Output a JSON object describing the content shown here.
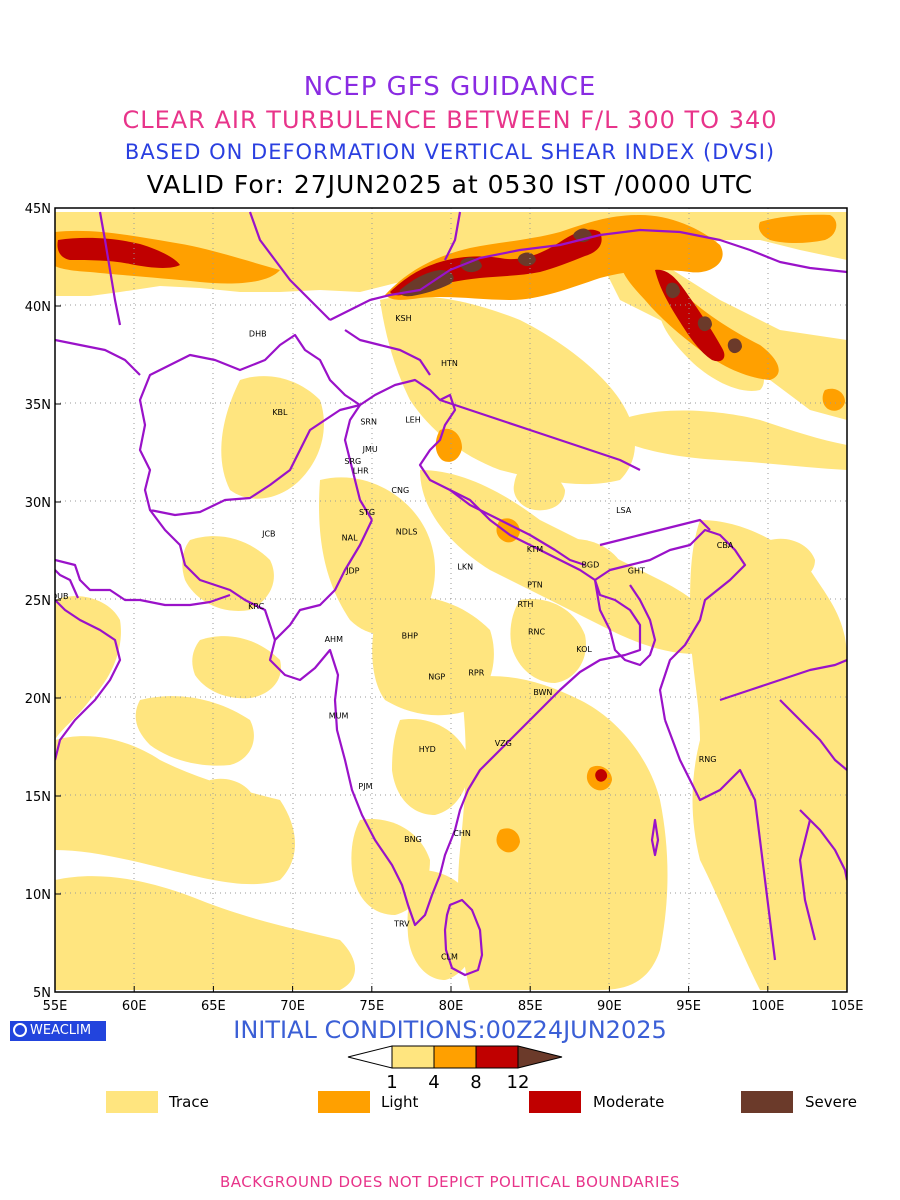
{
  "header": {
    "line1": "NCEP GFS GUIDANCE",
    "line2": "CLEAR AIR TURBULENCE BETWEEN F/L 300 TO 340",
    "line3": "BASED ON DEFORMATION VERTICAL SHEAR INDEX (DVSI)",
    "line4": "VALID For: 27JUN2025 at 0530 IST /0000 UTC"
  },
  "axes": {
    "lat_labels": [
      "45N",
      "40N",
      "35N",
      "30N",
      "25N",
      "20N",
      "15N",
      "10N",
      "5N"
    ],
    "lon_labels": [
      "55E",
      "60E",
      "65E",
      "70E",
      "75E",
      "80E",
      "85E",
      "90E",
      "95E",
      "100E",
      "105E"
    ],
    "lat_range": [
      5,
      45
    ],
    "lon_range": [
      55,
      105
    ]
  },
  "stations": [
    {
      "code": "KSH",
      "lon": 77.0,
      "lat": 39.4
    },
    {
      "code": "DHB",
      "lon": 67.8,
      "lat": 38.6
    },
    {
      "code": "HTN",
      "lon": 79.9,
      "lat": 37.1
    },
    {
      "code": "KBL",
      "lon": 69.2,
      "lat": 34.6
    },
    {
      "code": "SRN",
      "lon": 74.8,
      "lat": 34.1
    },
    {
      "code": "LEH",
      "lon": 77.6,
      "lat": 34.2
    },
    {
      "code": "JMU",
      "lon": 74.9,
      "lat": 32.7
    },
    {
      "code": "SRG",
      "lon": 73.8,
      "lat": 32.1
    },
    {
      "code": "LHR",
      "lon": 74.3,
      "lat": 31.6
    },
    {
      "code": "CNG",
      "lon": 76.8,
      "lat": 30.6
    },
    {
      "code": "LSA",
      "lon": 90.9,
      "lat": 29.6
    },
    {
      "code": "STG",
      "lon": 74.7,
      "lat": 29.5
    },
    {
      "code": "JCB",
      "lon": 68.5,
      "lat": 28.4
    },
    {
      "code": "NAL",
      "lon": 73.6,
      "lat": 28.2
    },
    {
      "code": "NDLS",
      "lon": 77.2,
      "lat": 28.5
    },
    {
      "code": "KTM",
      "lon": 85.3,
      "lat": 27.6
    },
    {
      "code": "CBA",
      "lon": 97.3,
      "lat": 27.8
    },
    {
      "code": "BGD",
      "lon": 88.8,
      "lat": 26.8
    },
    {
      "code": "GHT",
      "lon": 91.7,
      "lat": 26.5
    },
    {
      "code": "JDP",
      "lon": 73.8,
      "lat": 26.5
    },
    {
      "code": "LKN",
      "lon": 80.9,
      "lat": 26.7
    },
    {
      "code": "PTN",
      "lon": 85.3,
      "lat": 25.8
    },
    {
      "code": "DUB",
      "lon": 55.3,
      "lat": 25.2
    },
    {
      "code": "KRC",
      "lon": 67.7,
      "lat": 24.7
    },
    {
      "code": "RTH",
      "lon": 84.7,
      "lat": 24.8
    },
    {
      "code": "AHM",
      "lon": 72.6,
      "lat": 23.0
    },
    {
      "code": "BHP",
      "lon": 77.4,
      "lat": 23.2
    },
    {
      "code": "RNC",
      "lon": 85.4,
      "lat": 23.4
    },
    {
      "code": "KOL",
      "lon": 88.4,
      "lat": 22.5
    },
    {
      "code": "NGP",
      "lon": 79.1,
      "lat": 21.1
    },
    {
      "code": "RPR",
      "lon": 81.6,
      "lat": 21.3
    },
    {
      "code": "BWN",
      "lon": 85.8,
      "lat": 20.3
    },
    {
      "code": "MUM",
      "lon": 72.9,
      "lat": 19.1
    },
    {
      "code": "HYD",
      "lon": 78.5,
      "lat": 17.4
    },
    {
      "code": "VZG",
      "lon": 83.3,
      "lat": 17.7
    },
    {
      "code": "RNG",
      "lon": 96.2,
      "lat": 16.9
    },
    {
      "code": "PJM",
      "lon": 74.6,
      "lat": 15.5
    },
    {
      "code": "CHN",
      "lon": 80.7,
      "lat": 13.1
    },
    {
      "code": "BNG",
      "lon": 77.6,
      "lat": 12.8
    },
    {
      "code": "TRV",
      "lon": 76.9,
      "lat": 8.5
    },
    {
      "code": "CLM",
      "lon": 79.9,
      "lat": 6.8
    }
  ],
  "colorbar": {
    "ticks": [
      "1",
      "4",
      "8",
      "12"
    ],
    "colors": [
      "#ffffff",
      "#ffe57f",
      "#ffa000",
      "#c00000",
      "#6b3a2a"
    ]
  },
  "legend": [
    {
      "label": "Trace",
      "color": "#ffe57f"
    },
    {
      "label": "Light",
      "color": "#ffa000"
    },
    {
      "label": "Moderate",
      "color": "#c00000"
    },
    {
      "label": "Severe",
      "color": "#6b3a2a"
    }
  ],
  "logo_text": "WEACLIM",
  "init_conditions": "INITIAL CONDITIONS:00Z24JUN2025",
  "footer": "BACKGROUND DOES NOT DEPICT POLITICAL BOUNDARIES",
  "colors": {
    "border_line": "#9a12c9",
    "grid": "#9a9a9a"
  }
}
